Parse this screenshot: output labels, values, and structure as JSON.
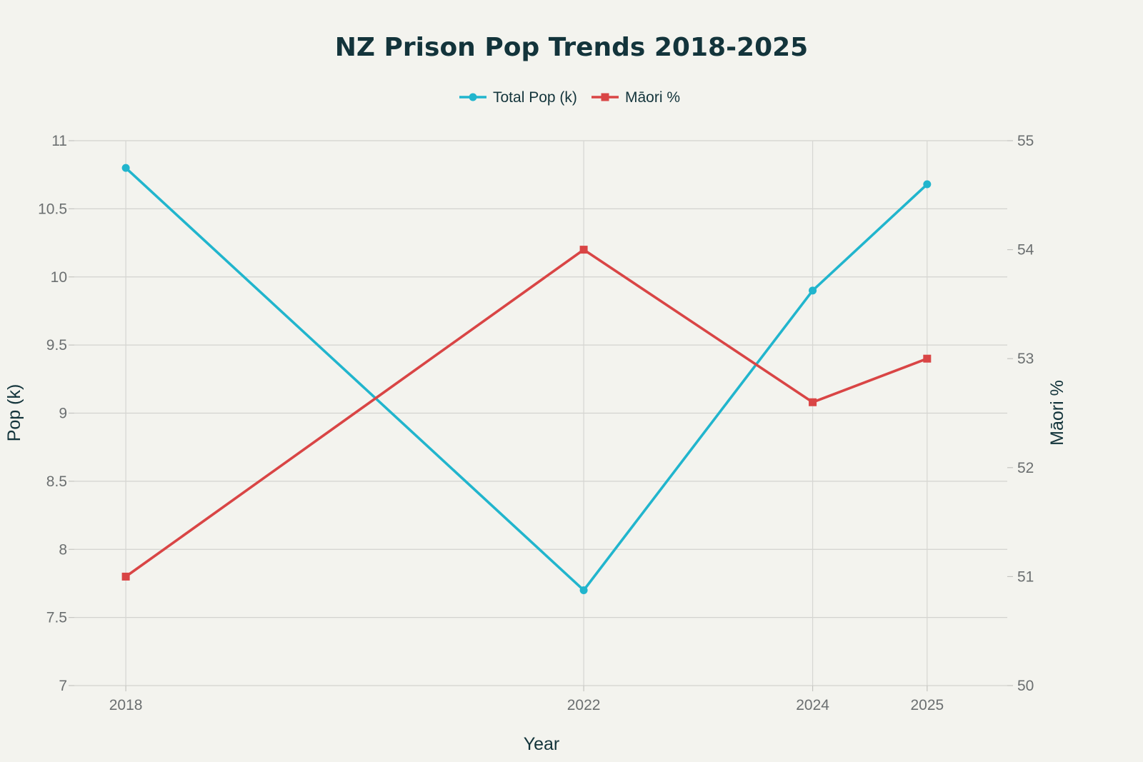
{
  "chart_data": {
    "type": "line",
    "title": "NZ Prison Pop Trends 2018-2025",
    "xlabel": "Year",
    "ylabel": "Pop (k)",
    "y2label": "Māori %",
    "x": [
      2018,
      2022,
      2024,
      2025
    ],
    "xlim": [
      2017.55,
      2025.7
    ],
    "ylim": [
      7,
      11
    ],
    "y2lim": [
      50,
      55
    ],
    "y_ticks": [
      7,
      7.5,
      8,
      8.5,
      9,
      9.5,
      10,
      10.5,
      11
    ],
    "y2_ticks": [
      50,
      51,
      52,
      53,
      54,
      55
    ],
    "grid": true,
    "legend_position": "top-center",
    "series": [
      {
        "name": "Total Pop (k)",
        "axis": "left",
        "values": [
          10.8,
          7.7,
          9.9,
          10.68
        ],
        "color": "#21b5cd",
        "marker": "circle"
      },
      {
        "name": "Māori %",
        "axis": "right",
        "values": [
          51.0,
          54.0,
          52.6,
          53.0
        ],
        "color": "#d94545",
        "marker": "square"
      }
    ]
  }
}
